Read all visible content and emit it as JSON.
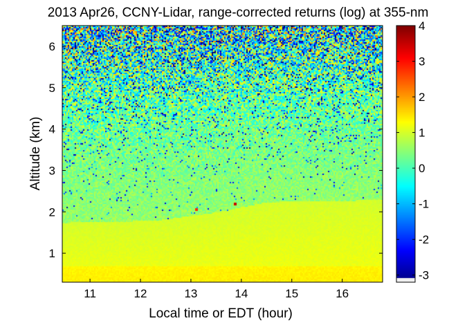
{
  "chart_data": {
    "type": "heatmap",
    "title": "2013 Apr26, CCNY-Lidar, range-corrected returns (log) at 355-nm",
    "xlabel": "Local time or EDT (hour)",
    "ylabel": "Altitude (km)",
    "xlim": [
      10.45,
      16.8
    ],
    "ylim": [
      0.3,
      6.5
    ],
    "x_ticks": [
      11,
      12,
      13,
      14,
      15,
      16
    ],
    "y_ticks": [
      1,
      2,
      3,
      4,
      5,
      6
    ],
    "colorbar": {
      "colormap": "jet",
      "range": [
        -3.2,
        4
      ],
      "ticks": [
        -3,
        -2,
        -1,
        0,
        1,
        2,
        3,
        4
      ]
    },
    "boundary_layer_top_km": [
      {
        "x": 10.45,
        "y": 1.75
      },
      {
        "x": 12.3,
        "y": 1.8
      },
      {
        "x": 13.5,
        "y": 2.0
      },
      {
        "x": 14.5,
        "y": 2.25
      },
      {
        "x": 16.8,
        "y": 2.3
      }
    ],
    "hotspots": [
      {
        "x": 13.1,
        "y": 2.07,
        "value": 2.8
      },
      {
        "x": 13.87,
        "y": 2.2,
        "value": 3.5
      }
    ]
  }
}
